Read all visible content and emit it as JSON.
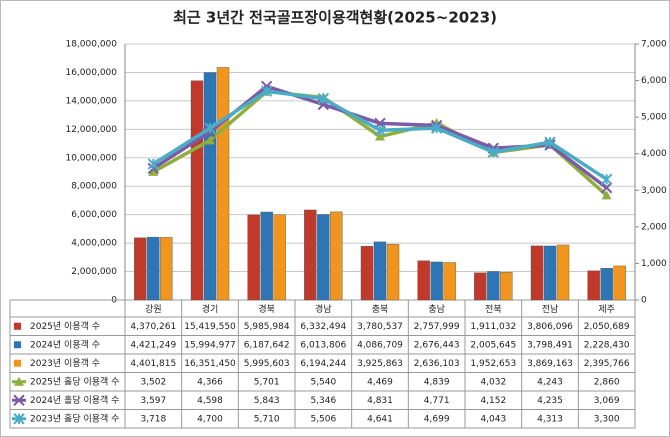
{
  "chart_data": {
    "type": "bar_line_table",
    "title": "최근 3년간 전국골프장이용객현황(2025~2023)",
    "categories": [
      "강원",
      "경기",
      "경북",
      "경남",
      "충북",
      "충남",
      "전북",
      "전남",
      "제주"
    ],
    "ylim": [
      0,
      18000000
    ],
    "yticks": [
      {
        "value": 0,
        "label": "0"
      },
      {
        "value": 2000000,
        "label": "2,000,000"
      },
      {
        "value": 4000000,
        "label": "4,000,000"
      },
      {
        "value": 6000000,
        "label": "6,000,000"
      },
      {
        "value": 8000000,
        "label": "8,000,000"
      },
      {
        "value": 10000000,
        "label": "10,000,000"
      },
      {
        "value": 12000000,
        "label": "12,000,000"
      },
      {
        "value": 14000000,
        "label": "14,000,000"
      },
      {
        "value": 16000000,
        "label": "16,000,000"
      },
      {
        "value": 18000000,
        "label": "18,000,000"
      }
    ],
    "y2lim": [
      0,
      7000
    ],
    "y2ticks": [
      0,
      {
        "value": 1000,
        "label": "1,000"
      },
      {
        "value": 2000,
        "label": "2,000"
      },
      {
        "value": 3000,
        "label": "3,000"
      },
      {
        "value": 4000,
        "label": "4,000"
      },
      {
        "value": 5000,
        "label": "5,000"
      },
      {
        "value": 6000,
        "label": "6,000"
      },
      {
        "value": 7000,
        "label": "7,000"
      }
    ],
    "grid": true,
    "series": [
      {
        "name": "2025년 이용객 수",
        "kind": "bar",
        "color": "#c0392b",
        "values": [
          4370261,
          15419550,
          5985984,
          6332494,
          3780537,
          2757999,
          1911032,
          3806096,
          2050689
        ],
        "value_labels": [
          "4,370,261",
          "15,419,550",
          "5,985,984",
          "6,332,494",
          "3,780,537",
          "2,757,999",
          "1,911,032",
          "3,806,096",
          "2,050,689"
        ]
      },
      {
        "name": "2024년 이용객 수",
        "kind": "bar",
        "color": "#2e75b6",
        "values": [
          4421249,
          15994977,
          6187642,
          6013806,
          4086709,
          2676443,
          2005645,
          3798491,
          2228430
        ],
        "value_labels": [
          "4,421,249",
          "15,994,977",
          "6,187,642",
          "6,013,806",
          "4,086,709",
          "2,676,443",
          "2,005,645",
          "3,798,491",
          "2,228,430"
        ]
      },
      {
        "name": "2023년 이용객 수",
        "kind": "bar",
        "color": "#f0961e",
        "values": [
          4401815,
          16351450,
          5995603,
          6194244,
          3925863,
          2636103,
          1952653,
          3869163,
          2395766
        ],
        "value_labels": [
          "4,401,815",
          "16,351,450",
          "5,995,603",
          "6,194,244",
          "3,925,863",
          "2,636,103",
          "1,952,653",
          "3,869,163",
          "2,395,766"
        ]
      },
      {
        "name": "2025년 홀당 이용객 수",
        "kind": "line",
        "axis": "y2",
        "marker": "triangle",
        "color": "#8fae3c",
        "values": [
          3502,
          4366,
          5701,
          5540,
          4469,
          4839,
          4032,
          4243,
          2860
        ],
        "value_labels": [
          "3,502",
          "4,366",
          "5,701",
          "5,540",
          "4,469",
          "4,839",
          "4,032",
          "4,243",
          "2,860"
        ]
      },
      {
        "name": "2024년 홀당 이용객 수",
        "kind": "line",
        "axis": "y2",
        "marker": "x",
        "color": "#7b5aa6",
        "values": [
          3597,
          4598,
          5843,
          5346,
          4831,
          4771,
          4152,
          4235,
          3069
        ],
        "value_labels": [
          "3,597",
          "4,598",
          "5,843",
          "5,346",
          "4,831",
          "4,771",
          "4,152",
          "4,235",
          "3,069"
        ]
      },
      {
        "name": "2023년 홀당 이용객 수",
        "kind": "line",
        "axis": "y2",
        "marker": "star",
        "color": "#4bacc6",
        "values": [
          3718,
          4700,
          5710,
          5506,
          4641,
          4699,
          4043,
          4313,
          3300
        ],
        "value_labels": [
          "3,718",
          "4,700",
          "5,710",
          "5,506",
          "4,641",
          "4,699",
          "4,043",
          "4,313",
          "3,300"
        ]
      }
    ]
  }
}
